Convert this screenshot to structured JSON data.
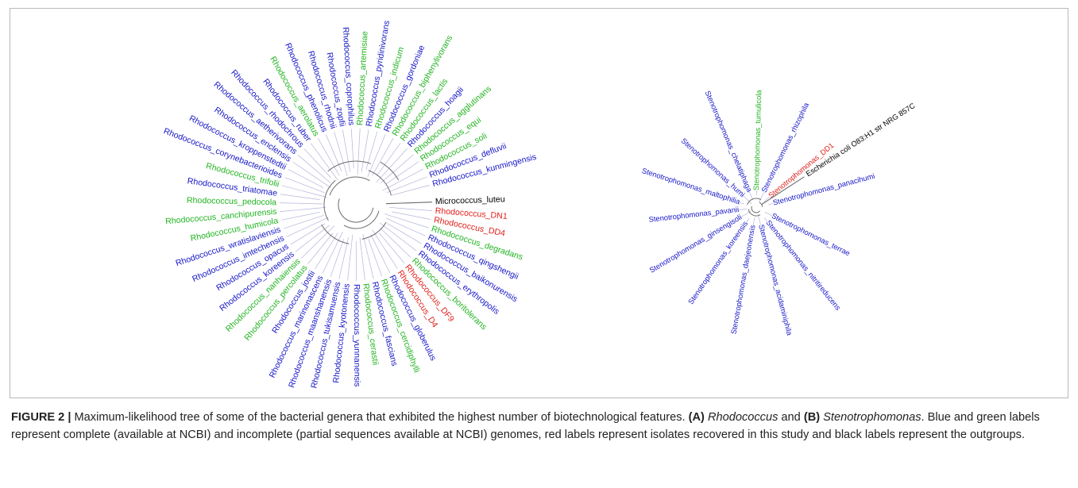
{
  "colors": {
    "complete": "#1515c8",
    "incomplete": "#21b421",
    "isolate": "#e0201a",
    "outgroup": "#000000",
    "branch": "#6b6b6b",
    "connector": "#b4b4dc"
  },
  "tree_a": {
    "name": "Rhodococcus",
    "leaves": [
      {
        "label": "Micrococcus_luteu",
        "group": "outgroup"
      },
      {
        "label": "Rhodococcus_DN1",
        "group": "isolate"
      },
      {
        "label": "Rhodococcus_DD4",
        "group": "isolate"
      },
      {
        "label": "Rhodococcus_degradans",
        "group": "incomplete"
      },
      {
        "label": "Rhodococcus_qingshengii",
        "group": "complete"
      },
      {
        "label": "Rhodococcus_baikonurensis",
        "group": "complete"
      },
      {
        "label": "Rhodococcus_erythropolis",
        "group": "complete"
      },
      {
        "label": "Rhodococcus_boritolerans",
        "group": "incomplete"
      },
      {
        "label": "Rhodococcus_DF9",
        "group": "isolate"
      },
      {
        "label": "Rhodococcus_D4",
        "group": "isolate"
      },
      {
        "label": "Rhodococcus_globerulus",
        "group": "complete"
      },
      {
        "label": "Rhodococcus_cercidiphylli",
        "group": "incomplete"
      },
      {
        "label": "Rhodococcus_fascians",
        "group": "complete"
      },
      {
        "label": "Rhodococcus_cerastii",
        "group": "incomplete"
      },
      {
        "label": "Rhodococcus_yunnanensis",
        "group": "complete"
      },
      {
        "label": "Rhodococcus_kyotonensis",
        "group": "complete"
      },
      {
        "label": "Rhodococcus_tukisamuensis",
        "group": "complete"
      },
      {
        "label": "Rhodococcus_maanshanensis",
        "group": "complete"
      },
      {
        "label": "Rhodococcus_marinonascens",
        "group": "complete"
      },
      {
        "label": "Rhodococcus_jostii",
        "group": "complete"
      },
      {
        "label": "Rhodococcus_percolatus",
        "group": "incomplete"
      },
      {
        "label": "Rhodococcus_nanhaiensis",
        "group": "incomplete"
      },
      {
        "label": "Rhodococcus_koreensis",
        "group": "complete"
      },
      {
        "label": "Rhodococcus_opacus",
        "group": "complete"
      },
      {
        "label": "Rhodococcus_imtechensis",
        "group": "complete"
      },
      {
        "label": "Rhodococcus_wratislaviensis",
        "group": "complete"
      },
      {
        "label": "Rhodococcus_humicola",
        "group": "incomplete"
      },
      {
        "label": "Rhodococcus_canchipurensis",
        "group": "incomplete"
      },
      {
        "label": "Rhodococcus_pedocola",
        "group": "incomplete"
      },
      {
        "label": "Rhodococcus_triatomae",
        "group": "complete"
      },
      {
        "label": "Rhodococcus_trifolii",
        "group": "incomplete"
      },
      {
        "label": "Rhodococcus_corynebacterioides",
        "group": "complete"
      },
      {
        "label": "Rhodococcus_kroppenstedtii",
        "group": "complete"
      },
      {
        "label": "Rhodococcus_enclensis",
        "group": "complete"
      },
      {
        "label": "Rhodococcus_aetherivorans",
        "group": "complete"
      },
      {
        "label": "Rhodococcus_rhodochrous",
        "group": "complete"
      },
      {
        "label": "Rhodococcus_ruber",
        "group": "complete"
      },
      {
        "label": "Rhodococcus_aerolatus",
        "group": "incomplete"
      },
      {
        "label": "Rhodococcus_phenolicus",
        "group": "complete"
      },
      {
        "label": "Rhodococcus_rhodnii",
        "group": "complete"
      },
      {
        "label": "Rhodococcus_zopfii",
        "group": "complete"
      },
      {
        "label": "Rhodococcus_coprophilus",
        "group": "complete"
      },
      {
        "label": "Rhodococcus_artemisiae",
        "group": "incomplete"
      },
      {
        "label": "Rhodococcus_pyridinivorans",
        "group": "complete"
      },
      {
        "label": "Rhodococcus_indicum",
        "group": "incomplete"
      },
      {
        "label": "Rhodococcus_gordoniae",
        "group": "complete"
      },
      {
        "label": "Rhodococcus_biphenylivorans",
        "group": "incomplete"
      },
      {
        "label": "Rhodococcus_lactis",
        "group": "incomplete"
      },
      {
        "label": "Rhodococcus_hoagii",
        "group": "complete"
      },
      {
        "label": "Rhodococcus_agglutinans",
        "group": "incomplete"
      },
      {
        "label": "Rhodococcus_equi",
        "group": "incomplete"
      },
      {
        "label": "Rhodococcus_soli",
        "group": "incomplete"
      },
      {
        "label": "Rhodococcus_defluvii",
        "group": "complete"
      },
      {
        "label": "Rhodococcus_kunmingensis",
        "group": "complete"
      }
    ]
  },
  "tree_b": {
    "name": "Stenotrophomonas",
    "leaves": [
      {
        "label": "Escherichia coli O83:H1 str NRG 857C",
        "group": "outgroup"
      },
      {
        "label": "Stenotrophomonas_terrae",
        "group": "complete"
      },
      {
        "label": "Stenotrophomonas_nitritireducens",
        "group": "complete"
      },
      {
        "label": "Stenotrophomonas_acidaminiphila",
        "group": "complete"
      },
      {
        "label": "Stenotrophomonas_daejeonensis",
        "group": "complete"
      },
      {
        "label": "Stenotrophomonas_koreensis",
        "group": "complete"
      },
      {
        "label": "Stenotrophomonas_ginsengisoli",
        "group": "complete"
      },
      {
        "label": "Stenotrophomonas_pavanii",
        "group": "complete"
      },
      {
        "label": "Stenotrophomonas_maltophilia",
        "group": "complete"
      },
      {
        "label": "Stenotrophomonas_humi",
        "group": "complete"
      },
      {
        "label": "Stenotrophomonas_chelatiphaga",
        "group": "complete"
      },
      {
        "label": "Stenotrophomonas_tumulicola",
        "group": "incomplete"
      },
      {
        "label": "Stenotrophomonas_rhizophila",
        "group": "complete"
      },
      {
        "label": "Stenotrophomonas_DD1",
        "group": "isolate"
      },
      {
        "label": "Stenotrophomonas_panacihumi",
        "group": "complete"
      }
    ]
  },
  "caption": {
    "figure_label": "FIGURE 2 |",
    "text_1": " Maximum-likelihood tree of some of the bacterial genera that exhibited the highest number of biotechnological features. ",
    "panel_a": "(A)",
    "genus_a": "Rhodococcus",
    "and": " and ",
    "panel_b": "(B)",
    "genus_b": "Stenotrophomonas",
    "text_2": ". Blue and green labels represent complete (available at NCBI) and incomplete (partial sequences available at NCBI) genomes, red labels represent isolates recovered in this study and black labels represent the outgroups."
  }
}
